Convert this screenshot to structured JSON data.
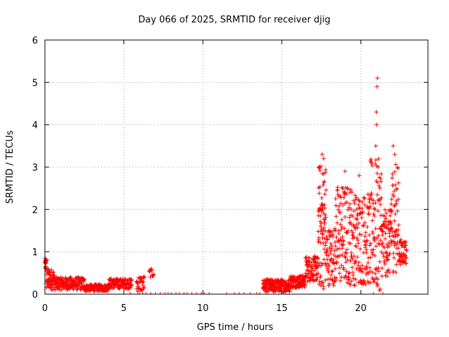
{
  "chart_data": {
    "type": "scatter",
    "title": "Day 066 of 2025, SRMTID for receiver djig",
    "xlabel": "GPS time / hours",
    "ylabel": "SRMTID / TECUs",
    "xlim": [
      0,
      24.25
    ],
    "ylim": [
      0,
      6
    ],
    "xticks": [
      0,
      5,
      10,
      15,
      20
    ],
    "yticks": [
      0,
      1,
      2,
      3,
      4,
      5,
      6
    ],
    "grid": true,
    "marker": "plus",
    "color": "#ff0000",
    "series": [
      {
        "name": "SRMTID",
        "segments": [
          {
            "x_start": 0.0,
            "x_end": 0.1,
            "y_base": 0.7,
            "y_amp": 0.15,
            "n": 20
          },
          {
            "x_start": 0.1,
            "x_end": 0.6,
            "y_base": 0.35,
            "y_amp": 0.25,
            "n": 60
          },
          {
            "x_start": 0.6,
            "x_end": 2.5,
            "y_base": 0.25,
            "y_amp": 0.15,
            "n": 180
          },
          {
            "x_start": 2.5,
            "x_end": 4.0,
            "y_base": 0.15,
            "y_amp": 0.08,
            "n": 130
          },
          {
            "x_start": 4.0,
            "x_end": 5.5,
            "y_base": 0.25,
            "y_amp": 0.12,
            "n": 130
          },
          {
            "x_start": 5.8,
            "x_end": 6.3,
            "y_base": 0.25,
            "y_amp": 0.2,
            "n": 30
          },
          {
            "x_start": 6.6,
            "x_end": 6.9,
            "y_base": 0.5,
            "y_amp": 0.1,
            "n": 12
          },
          {
            "x_start": 13.8,
            "x_end": 15.5,
            "y_base": 0.2,
            "y_amp": 0.15,
            "n": 180
          },
          {
            "x_start": 15.5,
            "x_end": 16.5,
            "y_base": 0.3,
            "y_amp": 0.15,
            "n": 100
          },
          {
            "x_start": 16.5,
            "x_end": 17.3,
            "y_base": 0.6,
            "y_amp": 0.3,
            "n": 80
          },
          {
            "x_start": 17.3,
            "x_end": 17.8,
            "y_base": 1.6,
            "y_amp": 1.5,
            "n": 80
          },
          {
            "x_start": 17.8,
            "x_end": 18.4,
            "y_base": 0.9,
            "y_amp": 0.7,
            "n": 60
          },
          {
            "x_start": 18.4,
            "x_end": 19.5,
            "y_base": 1.4,
            "y_amp": 1.2,
            "n": 120
          },
          {
            "x_start": 19.5,
            "x_end": 20.6,
            "y_base": 1.3,
            "y_amp": 1.1,
            "n": 120
          },
          {
            "x_start": 20.6,
            "x_end": 21.3,
            "y_base": 1.6,
            "y_amp": 1.6,
            "n": 80
          },
          {
            "x_start": 21.3,
            "x_end": 21.9,
            "y_base": 1.2,
            "y_amp": 0.8,
            "n": 70
          },
          {
            "x_start": 21.9,
            "x_end": 22.4,
            "y_base": 1.8,
            "y_amp": 1.3,
            "n": 60
          },
          {
            "x_start": 22.4,
            "x_end": 22.9,
            "y_base": 1.0,
            "y_amp": 0.3,
            "n": 50
          }
        ],
        "spikes": [
          {
            "x": 21.05,
            "y": 5.1
          },
          {
            "x": 21.02,
            "y": 4.9
          },
          {
            "x": 20.98,
            "y": 4.3
          },
          {
            "x": 21.0,
            "y": 4.0
          },
          {
            "x": 20.95,
            "y": 3.5
          },
          {
            "x": 22.05,
            "y": 3.5
          },
          {
            "x": 22.15,
            "y": 3.3
          },
          {
            "x": 17.55,
            "y": 3.3
          },
          {
            "x": 17.65,
            "y": 3.2
          },
          {
            "x": 19.0,
            "y": 2.9
          },
          {
            "x": 19.9,
            "y": 2.8
          },
          {
            "x": 21.1,
            "y": 3.0
          }
        ],
        "zeros_x": [
          5.4,
          6.0,
          6.2,
          6.4,
          6.7,
          7.0,
          7.3,
          7.6,
          7.8,
          8.0,
          8.3,
          8.5,
          8.8,
          9.0,
          9.3,
          9.6,
          9.9,
          10.1,
          10.4,
          11.5,
          12.0,
          12.3,
          12.6,
          13.0,
          13.4,
          13.6,
          20.8,
          21.4
        ]
      }
    ]
  }
}
